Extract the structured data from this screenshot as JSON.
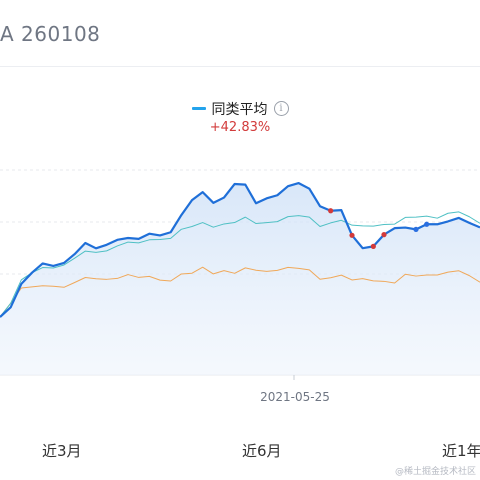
{
  "header": {
    "title": "A  260108"
  },
  "legend": {
    "label": "同类平均",
    "info_icon": "info-icon",
    "color": "#23a3ec"
  },
  "change": {
    "text": "+42.83%",
    "color": "#d23b3b"
  },
  "chart": {
    "crosshair_date": "2021-05-25"
  },
  "tabs": [
    {
      "label": "近3月"
    },
    {
      "label": "近6月"
    },
    {
      "label": "近1年"
    }
  ],
  "watermark": "@稀土掘金技术社区",
  "chart_data": {
    "type": "line",
    "series": [
      {
        "color": "#1f6fd8",
        "values": [
          0.0,
          0.06,
          0.15,
          0.22,
          0.26,
          0.25,
          0.27,
          0.3,
          0.33,
          0.31,
          0.34,
          0.36,
          0.35,
          0.37,
          0.39,
          0.4,
          0.43,
          0.5,
          0.58,
          0.61,
          0.57,
          0.59,
          0.66,
          0.62,
          0.52,
          0.55,
          0.57,
          0.6,
          0.62,
          0.6,
          0.56,
          0.53,
          0.52,
          0.4,
          0.33,
          0.35,
          0.42,
          0.45,
          0.41,
          0.41,
          0.43,
          0.44,
          0.44,
          0.45,
          0.44,
          0.45
        ]
      },
      {
        "color": "#4fc0c4",
        "values": [
          0.0,
          0.08,
          0.17,
          0.22,
          0.24,
          0.24,
          0.26,
          0.28,
          0.29,
          0.29,
          0.31,
          0.33,
          0.33,
          0.35,
          0.36,
          0.38,
          0.4,
          0.43,
          0.45,
          0.46,
          0.45,
          0.46,
          0.47,
          0.46,
          0.42,
          0.43,
          0.44,
          0.45,
          0.46,
          0.46,
          0.46,
          0.47,
          0.47,
          0.45,
          0.44,
          0.45,
          0.47,
          0.47,
          0.46,
          0.47,
          0.47,
          0.47,
          0.48,
          0.48,
          0.47,
          0.47
        ]
      },
      {
        "color": "#f0a859",
        "values": [
          0.0,
          0.08,
          0.13,
          0.15,
          0.15,
          0.15,
          0.15,
          0.16,
          0.16,
          0.16,
          0.17,
          0.17,
          0.17,
          0.18,
          0.18,
          0.18,
          0.19,
          0.21,
          0.22,
          0.24,
          0.22,
          0.23,
          0.22,
          0.21,
          0.19,
          0.19,
          0.2,
          0.2,
          0.2,
          0.2,
          0.2,
          0.2,
          0.2,
          0.18,
          0.18,
          0.18,
          0.19,
          0.18,
          0.18,
          0.18,
          0.18,
          0.19,
          0.19,
          0.19,
          0.18,
          0.18
        ]
      }
    ],
    "markers": [
      {
        "series": 0,
        "index": 31,
        "color": "#d23b3b"
      },
      {
        "series": 0,
        "index": 33,
        "color": "#d23b3b"
      },
      {
        "series": 0,
        "index": 35,
        "color": "#d23b3b"
      },
      {
        "series": 0,
        "index": 36,
        "color": "#d23b3b"
      },
      {
        "series": 0,
        "index": 39,
        "color": "#2a6fe0"
      },
      {
        "series": 0,
        "index": 40,
        "color": "#2a6fe0"
      }
    ],
    "grid": true
  }
}
